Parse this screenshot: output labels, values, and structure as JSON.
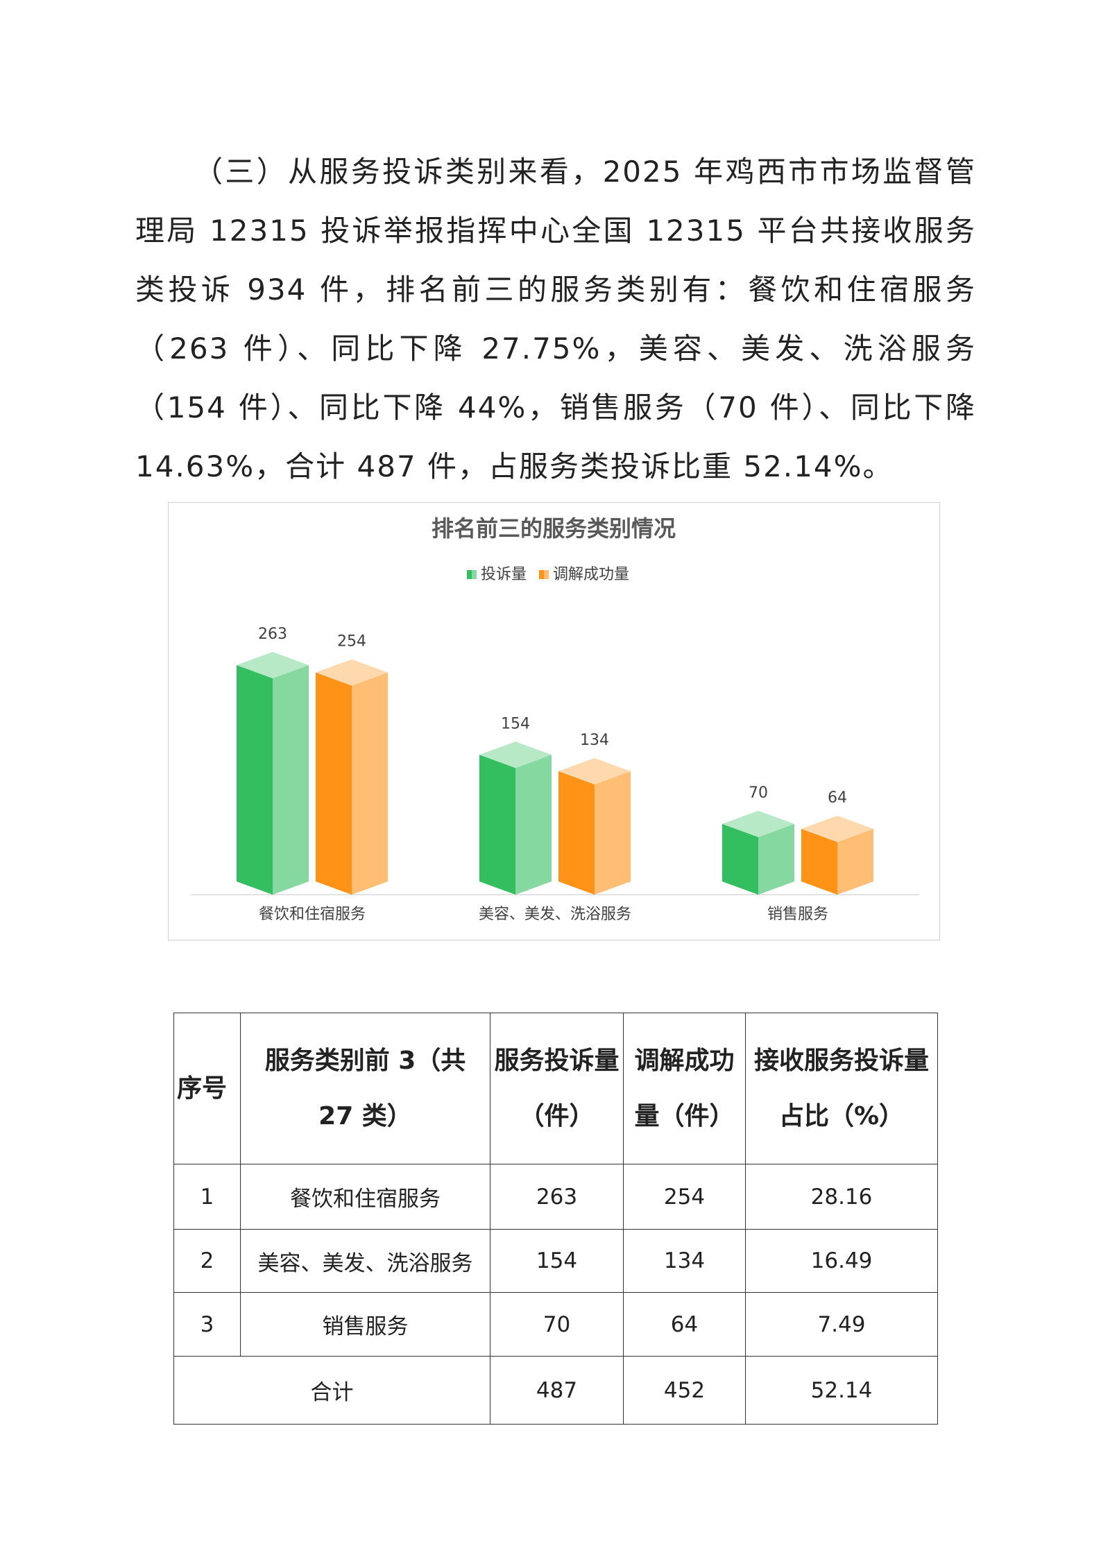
{
  "paragraph": "（三）从服务投诉类别来看，2025 年鸡西市市场监督管理局 12315 投诉举报指挥中心全国 12315 平台共接收服务类投诉 934 件，排名前三的服务类别有：餐饮和住宿服务（263 件）、同比下降 27.75%，美容、美发、洗浴服务（154 件）、同比下降 44%，销售服务（70 件）、同比下降 14.63%，合计 487 件，占服务类投诉比重 52.14%。",
  "chart_data": {
    "type": "bar3d",
    "title": "排名前三的服务类别情况",
    "categories": [
      "餐饮和住宿服务",
      "美容、美发、洗浴服务",
      "销售服务"
    ],
    "series": [
      {
        "name": "投诉量",
        "color": "#33bf60",
        "values": [
          263,
          154,
          70
        ]
      },
      {
        "name": "调解成功量",
        "color": "#ff9317",
        "values": [
          254,
          134,
          64
        ]
      }
    ],
    "legend": "top"
  },
  "table": {
    "header": [
      "序号",
      "服务类别前 3（共 27 类）",
      "服务投诉量（件）",
      "调解成功量（件）",
      "接收服务投诉量占比（%）"
    ],
    "rows": [
      [
        "1",
        "餐饮和住宿服务",
        "263",
        "254",
        "28.16"
      ],
      [
        "2",
        "美容、美发、洗浴服务",
        "154",
        "134",
        "16.49"
      ],
      [
        "3",
        "销售服务",
        "70",
        "64",
        "7.49"
      ]
    ],
    "total": [
      "合计",
      "487",
      "452",
      "52.14"
    ]
  }
}
